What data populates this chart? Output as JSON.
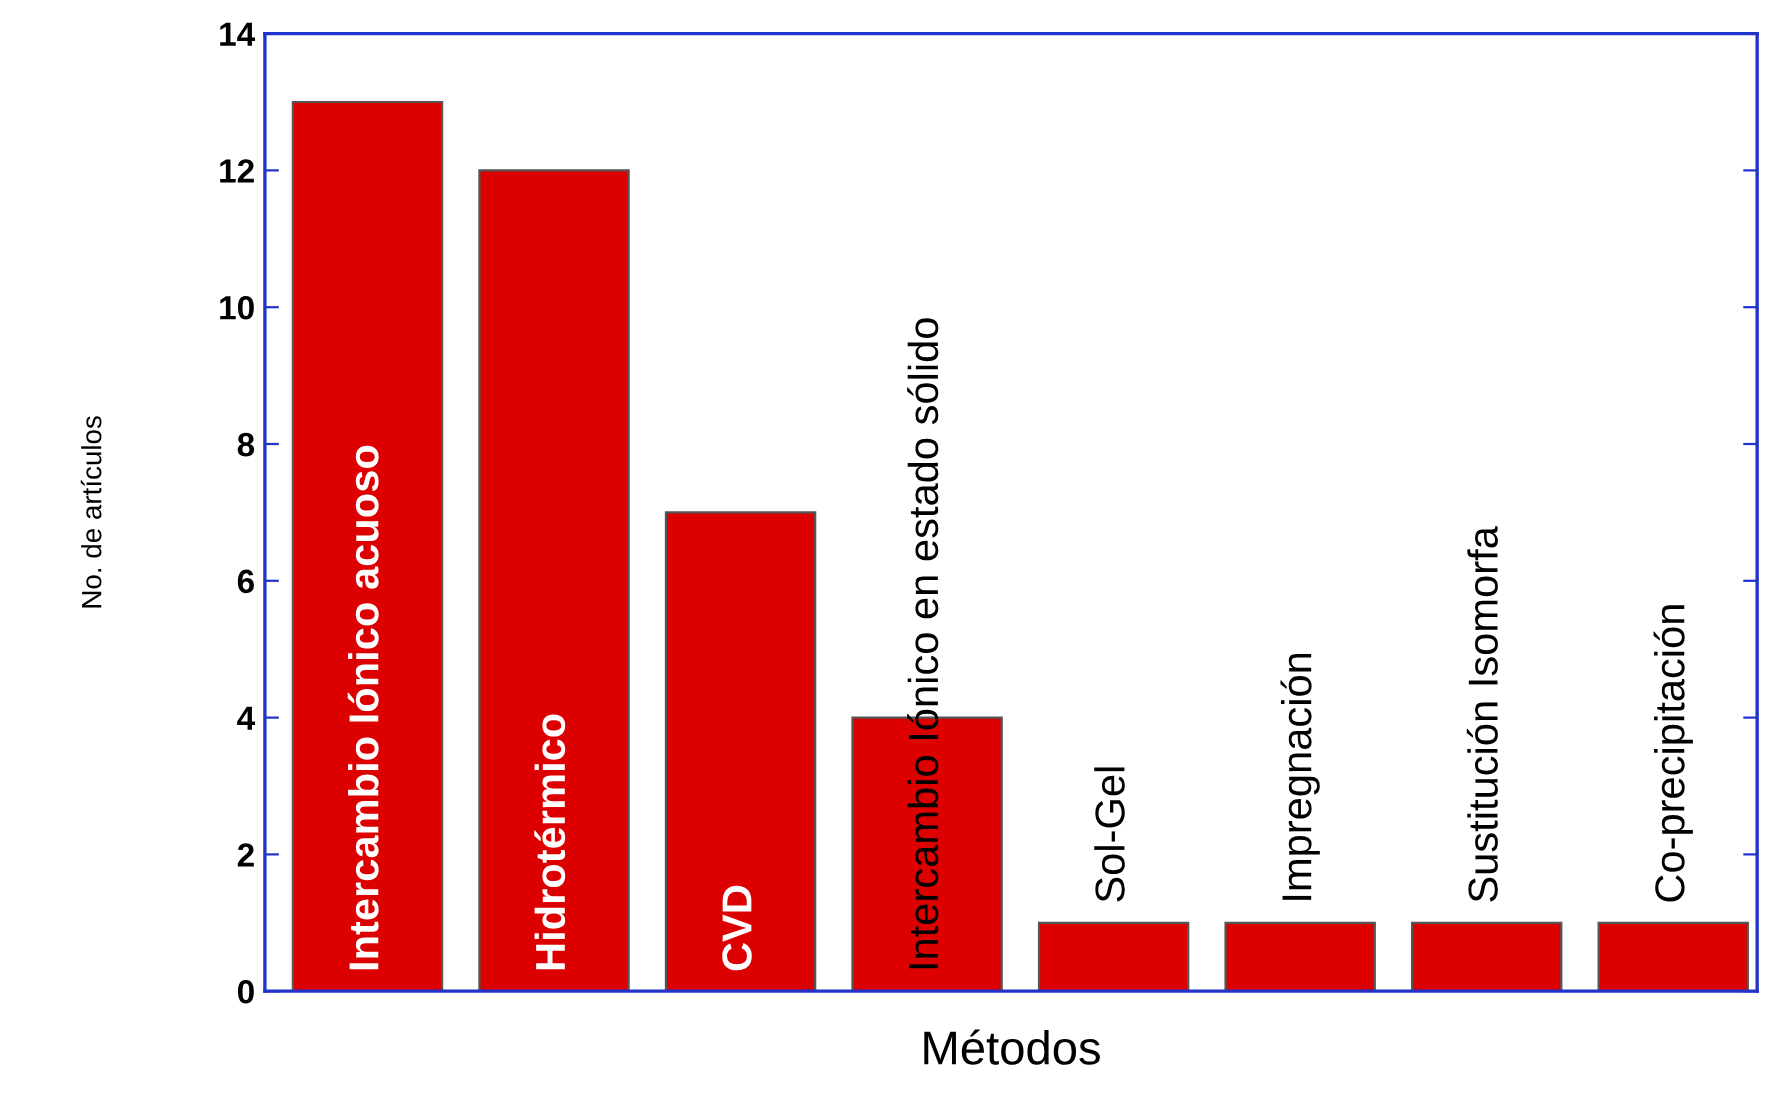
{
  "chart_data": {
    "type": "bar",
    "xlabel": "Métodos",
    "ylabel": "No. de artículos",
    "categories": [
      "Intercambio Iónico acuoso",
      "Hidrotérmico",
      "CVD",
      "Intercambio Iónico en estado sólido",
      "Sol-Gel",
      "Impregnación",
      "Sustitución Isomorfa",
      "Co-precipitación"
    ],
    "values": [
      13,
      12,
      7,
      4,
      1,
      1,
      1,
      1
    ],
    "color": "#dd0000",
    "ylim": [
      0,
      14
    ],
    "yticks": [
      0,
      2,
      4,
      6,
      8,
      10,
      12,
      14
    ],
    "grid": false,
    "legend": false
  }
}
